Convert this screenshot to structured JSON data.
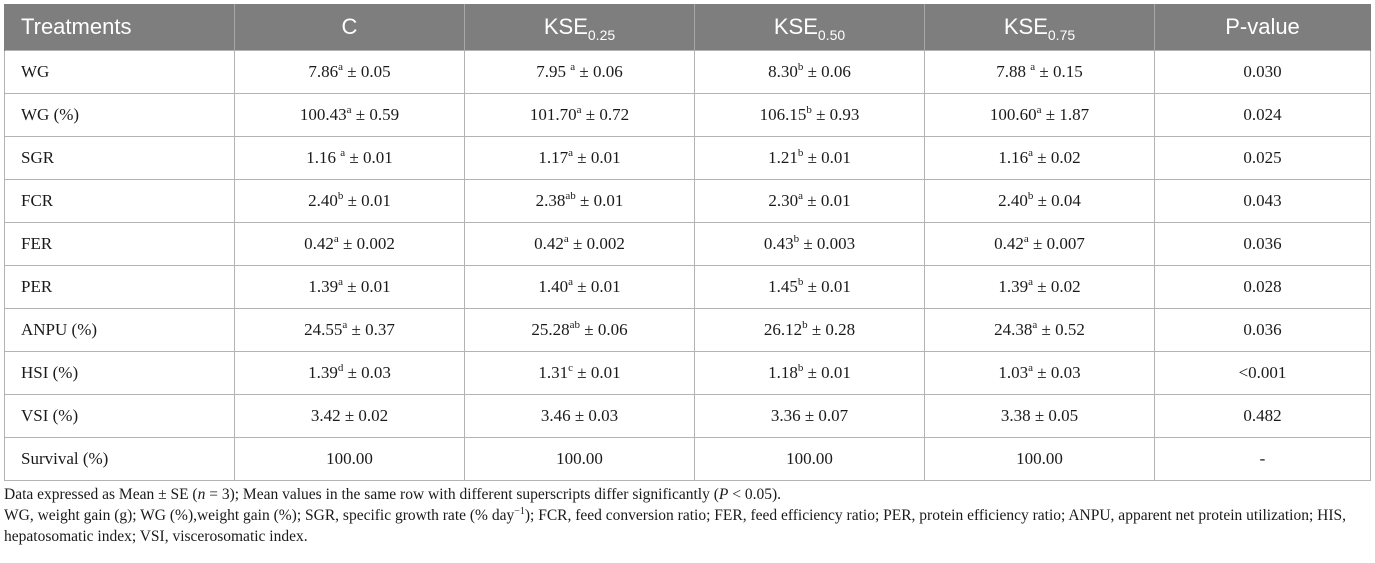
{
  "table": {
    "headers": [
      {
        "base": "Treatments",
        "sub": ""
      },
      {
        "base": "C",
        "sub": ""
      },
      {
        "base": "KSE",
        "sub": "0.25"
      },
      {
        "base": "KSE",
        "sub": "0.50"
      },
      {
        "base": "KSE",
        "sub": "0.75"
      },
      {
        "base": "P-value",
        "sub": ""
      }
    ],
    "rows": [
      {
        "label": "WG",
        "cells": [
          {
            "v": "7.86",
            "sup": "a",
            "se": " ± 0.05"
          },
          {
            "v": "7.95 ",
            "sup": "a",
            "se": " ± 0.06"
          },
          {
            "v": "8.30",
            "sup": "b",
            "se": " ± 0.06"
          },
          {
            "v": "7.88 ",
            "sup": "a",
            "se": " ± 0.15"
          }
        ],
        "p": "0.030"
      },
      {
        "label": "WG (%)",
        "cells": [
          {
            "v": "100.43",
            "sup": "a",
            "se": " ± 0.59"
          },
          {
            "v": "101.70",
            "sup": "a",
            "se": " ± 0.72"
          },
          {
            "v": "106.15",
            "sup": "b",
            "se": " ± 0.93"
          },
          {
            "v": "100.60",
            "sup": "a",
            "se": " ± 1.87"
          }
        ],
        "p": "0.024"
      },
      {
        "label": "SGR",
        "cells": [
          {
            "v": "1.16 ",
            "sup": "a",
            "se": " ± 0.01"
          },
          {
            "v": "1.17",
            "sup": "a",
            "se": " ± 0.01"
          },
          {
            "v": "1.21",
            "sup": "b",
            "se": " ± 0.01"
          },
          {
            "v": "1.16",
            "sup": "a",
            "se": " ± 0.02"
          }
        ],
        "p": "0.025"
      },
      {
        "label": "FCR",
        "cells": [
          {
            "v": "2.40",
            "sup": "b",
            "se": " ± 0.01"
          },
          {
            "v": "2.38",
            "sup": "ab",
            "se": " ± 0.01"
          },
          {
            "v": "2.30",
            "sup": "a",
            "se": " ± 0.01"
          },
          {
            "v": "2.40",
            "sup": "b",
            "se": " ± 0.04"
          }
        ],
        "p": "0.043"
      },
      {
        "label": "FER",
        "cells": [
          {
            "v": "0.42",
            "sup": "a",
            "se": " ± 0.002"
          },
          {
            "v": "0.42",
            "sup": "a",
            "se": " ± 0.002"
          },
          {
            "v": "0.43",
            "sup": "b",
            "se": " ± 0.003"
          },
          {
            "v": "0.42",
            "sup": "a",
            "se": " ± 0.007"
          }
        ],
        "p": "0.036"
      },
      {
        "label": "PER",
        "cells": [
          {
            "v": "1.39",
            "sup": "a",
            "se": " ± 0.01"
          },
          {
            "v": "1.40",
            "sup": "a",
            "se": " ± 0.01"
          },
          {
            "v": "1.45",
            "sup": "b",
            "se": " ± 0.01"
          },
          {
            "v": "1.39",
            "sup": "a",
            "se": " ± 0.02"
          }
        ],
        "p": "0.028"
      },
      {
        "label": "ANPU (%)",
        "cells": [
          {
            "v": "24.55",
            "sup": "a",
            "se": " ± 0.37"
          },
          {
            "v": "25.28",
            "sup": "ab",
            "se": " ± 0.06"
          },
          {
            "v": "26.12",
            "sup": "b",
            "se": " ± 0.28"
          },
          {
            "v": "24.38",
            "sup": "a",
            "se": " ± 0.52"
          }
        ],
        "p": "0.036"
      },
      {
        "label": "HSI (%)",
        "cells": [
          {
            "v": "1.39",
            "sup": "d",
            "se": " ± 0.03"
          },
          {
            "v": "1.31",
            "sup": "c",
            "se": " ± 0.01"
          },
          {
            "v": "1.18",
            "sup": "b",
            "se": " ± 0.01"
          },
          {
            "v": "1.03",
            "sup": "a",
            "se": " ± 0.03"
          }
        ],
        "p": "<0.001"
      },
      {
        "label": "VSI (%)",
        "cells": [
          {
            "v": "3.42",
            "sup": "",
            "se": " ± 0.02"
          },
          {
            "v": "3.46",
            "sup": "",
            "se": " ± 0.03"
          },
          {
            "v": "3.36",
            "sup": "",
            "se": " ± 0.07"
          },
          {
            "v": "3.38",
            "sup": "",
            "se": " ± 0.05"
          }
        ],
        "p": "0.482"
      },
      {
        "label": "Survival (%)",
        "cells": [
          {
            "v": "100.00",
            "sup": "",
            "se": ""
          },
          {
            "v": "100.00",
            "sup": "",
            "se": ""
          },
          {
            "v": "100.00",
            "sup": "",
            "se": ""
          },
          {
            "v": "100.00",
            "sup": "",
            "se": ""
          }
        ],
        "p": "-"
      }
    ]
  },
  "footnotes": {
    "line1": {
      "a": "Data expressed as Mean ± SE (",
      "n_italic": "n",
      "b": " = 3); Mean values in the same row with different superscripts differ significantly (",
      "p_italic": "P",
      "c": " < 0.05)."
    },
    "line2": {
      "a": "WG, weight gain (g); WG (%),weight gain (%); SGR, specific growth rate (% day",
      "sup": "−1",
      "b": "); FCR, feed conversion ratio; FER, feed efficiency ratio; PER, protein efficiency ratio; ANPU, apparent net protein utilization; HIS, hepatosomatic index; VSI, viscerosomatic index."
    }
  },
  "colors": {
    "header_bg": "#7e7e7e",
    "header_text": "#ffffff",
    "grid": "#b3b3b3"
  }
}
